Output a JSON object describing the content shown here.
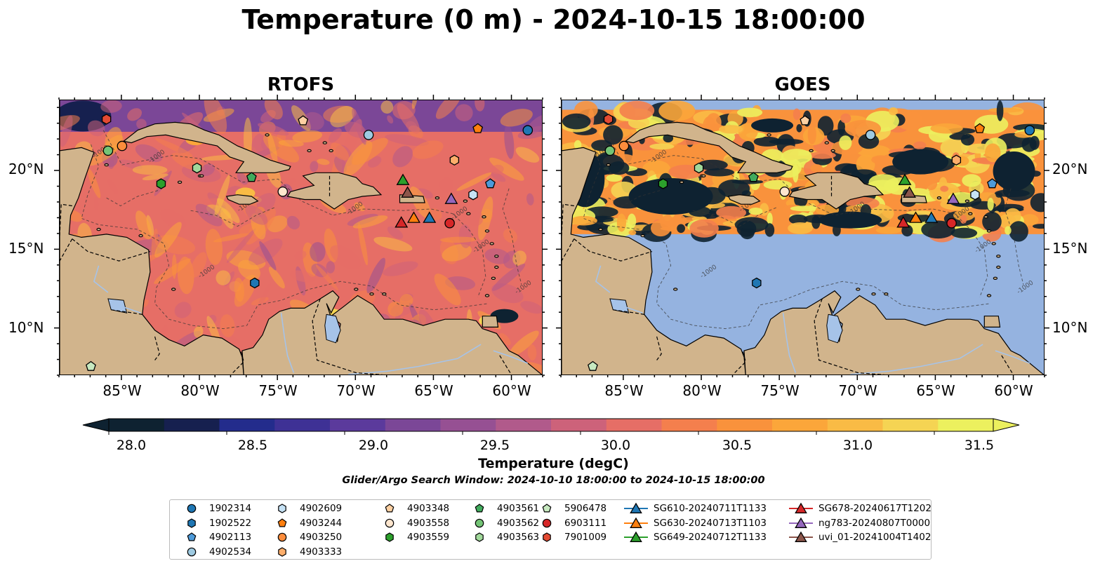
{
  "title": "Temperature (0 m) - 2024-10-15 18:00:00",
  "panels": [
    {
      "title": "RTOFS",
      "mode": "model"
    },
    {
      "title": "GOES",
      "mode": "satellite"
    }
  ],
  "colors": {
    "land": "#d1b48c",
    "no_data": "#95b3e0",
    "river": "#a6c3e8",
    "scale": [
      "#0e2231",
      "#16204f",
      "#232c8c",
      "#3e3195",
      "#5b3a9c",
      "#7b4797",
      "#965093",
      "#b15a8b",
      "#cd627a",
      "#e66e66",
      "#f47f4d",
      "#f9923c",
      "#fba63a",
      "#f9bb45",
      "#f5d453",
      "#ecf05e"
    ]
  },
  "axes": {
    "lat_labels": [
      "10°N",
      "15°N",
      "20°N"
    ],
    "lon_labels": [
      "85°W",
      "80°W",
      "75°W",
      "70°W",
      "65°W",
      "60°W"
    ],
    "lat_range": [
      7.0,
      24.5
    ],
    "lon_range": [
      -89.0,
      -58.0
    ]
  },
  "isobath_labels": [
    "-1000",
    "-1000",
    "-1000",
    "-1000",
    "-1000",
    "-1000",
    "-1000",
    "-1000"
  ],
  "colorbar": {
    "label": "Temperature (degC)",
    "ticks": [
      "28.0",
      "28.5",
      "29.0",
      "29.5",
      "30.0",
      "30.5",
      "31.0",
      "31.5"
    ],
    "range": [
      28.0,
      31.75
    ]
  },
  "search_window": "Glider/Argo Search Window: 2024-10-10 18:00:00 to 2024-10-15 18:00:00",
  "platforms": [
    {
      "name": "1902314",
      "marker": "circle",
      "color": "#1f77b4",
      "lon": -59.0,
      "lat": 22.6
    },
    {
      "name": "1902522",
      "marker": "hexagon",
      "color": "#1f77b4",
      "lon": -76.5,
      "lat": 12.9
    },
    {
      "name": "4902113",
      "marker": "pentagon",
      "color": "#4d9ad9",
      "lon": -61.4,
      "lat": 19.2
    },
    {
      "name": "4902534",
      "marker": "circle",
      "color": "#9ecae1",
      "lon": -69.2,
      "lat": 22.3
    },
    {
      "name": "4902609",
      "marker": "hexagon",
      "color": "#c6e2f5",
      "lon": -62.5,
      "lat": 18.5
    },
    {
      "name": "4903244",
      "marker": "pentagon",
      "color": "#ff7f0e",
      "lon": -62.2,
      "lat": 22.7
    },
    {
      "name": "4903250",
      "marker": "circle",
      "color": "#fd8d3c",
      "lon": -85.0,
      "lat": 21.6
    },
    {
      "name": "4903333",
      "marker": "hexagon",
      "color": "#fdae6b",
      "lon": -63.7,
      "lat": 20.7
    },
    {
      "name": "4903348",
      "marker": "pentagon",
      "color": "#fdd0a2",
      "lon": -73.4,
      "lat": 23.2
    },
    {
      "name": "4903558",
      "marker": "circle",
      "color": "#fee6ce",
      "lon": -74.7,
      "lat": 18.7
    },
    {
      "name": "4903559",
      "marker": "hexagon",
      "color": "#2ca02c",
      "lon": -82.5,
      "lat": 19.2
    },
    {
      "name": "4903561",
      "marker": "pentagon",
      "color": "#41ab5d",
      "lon": -76.7,
      "lat": 19.6
    },
    {
      "name": "4903562",
      "marker": "circle",
      "color": "#74c476",
      "lon": -85.9,
      "lat": 21.3
    },
    {
      "name": "4903563",
      "marker": "hexagon",
      "color": "#a1d99b",
      "lon": -80.2,
      "lat": 20.2
    },
    {
      "name": "5906478",
      "marker": "pentagon",
      "color": "#c7e9c0",
      "lon": -87.0,
      "lat": 7.6
    },
    {
      "name": "6903111",
      "marker": "circle",
      "color": "#d62728",
      "lon": -64.0,
      "lat": 16.7
    },
    {
      "name": "7901009",
      "marker": "hexagon",
      "color": "#e34a33",
      "lon": -86.0,
      "lat": 23.3
    },
    {
      "name": "SG610-20240711T1133",
      "marker": "triangle",
      "color": "#1f77b4",
      "lon": -65.3,
      "lat": 17.0
    },
    {
      "name": "SG630-20240713T1103",
      "marker": "triangle",
      "color": "#ff7f0e",
      "lon": -66.3,
      "lat": 17.0
    },
    {
      "name": "SG649-20240712T1133",
      "marker": "triangle",
      "color": "#2ca02c",
      "lon": -67.0,
      "lat": 19.4
    },
    {
      "name": "SG678-20240617T1202",
      "marker": "triangle",
      "color": "#d62728",
      "lon": -67.1,
      "lat": 16.7
    },
    {
      "name": "ng783-20240807T0000",
      "marker": "triangle",
      "color": "#9467bd",
      "lon": -63.9,
      "lat": 18.2
    },
    {
      "name": "uvi_01-20241004T1402",
      "marker": "triangle",
      "color": "#8c564b",
      "lon": -66.7,
      "lat": 18.6
    }
  ]
}
